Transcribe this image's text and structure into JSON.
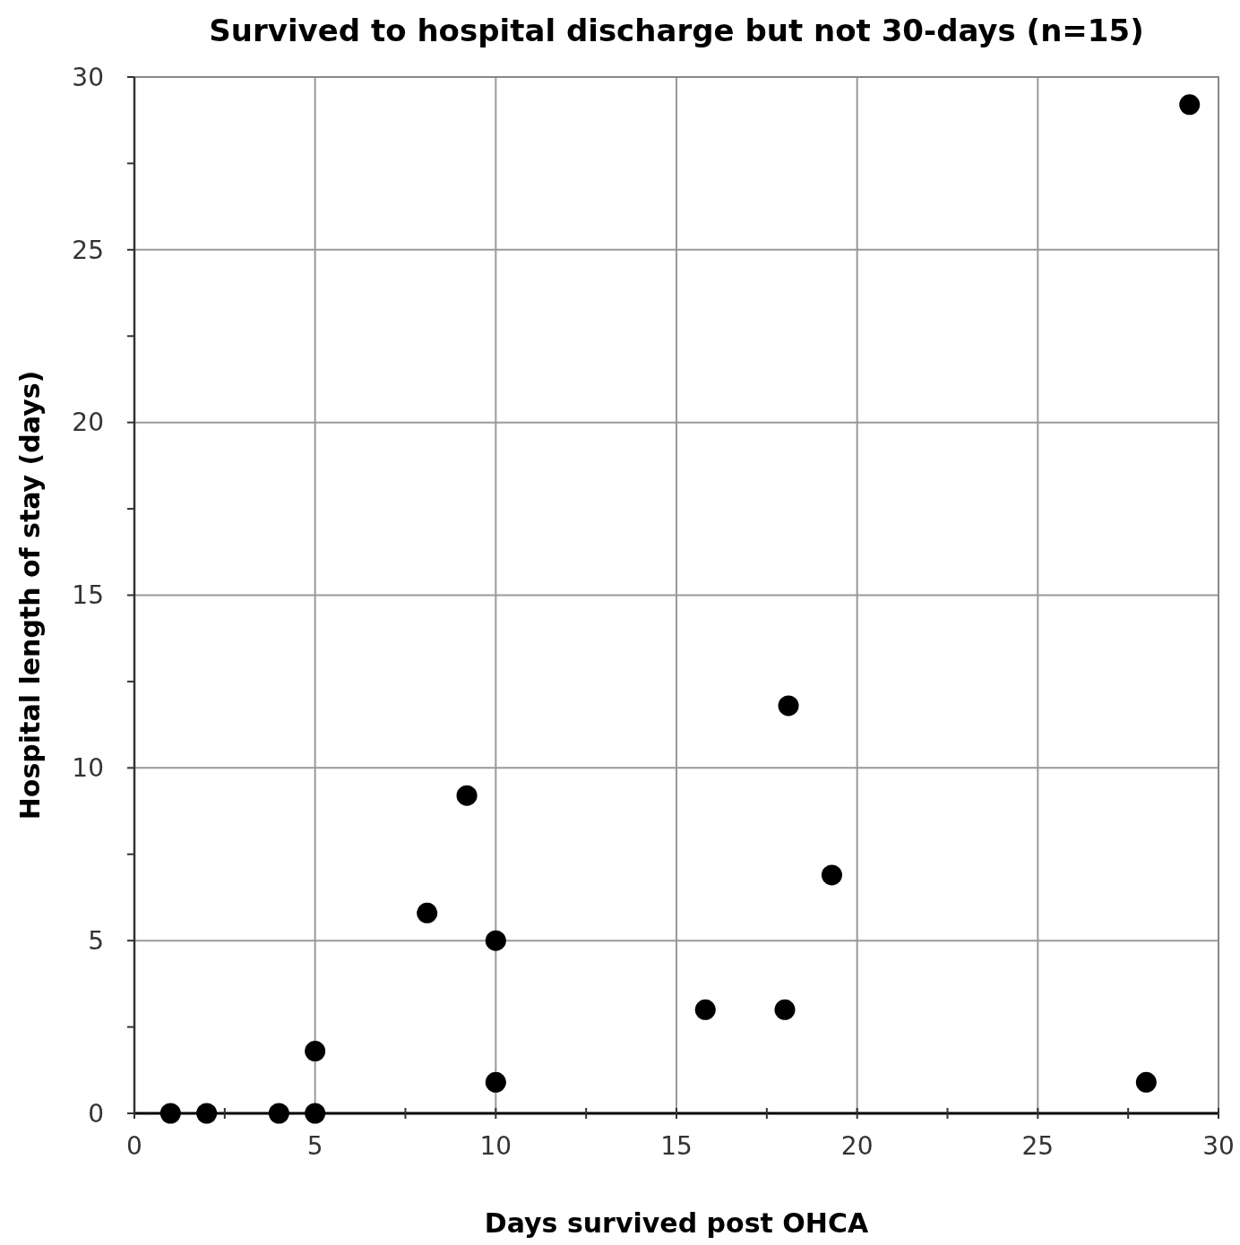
{
  "chart_data": {
    "type": "scatter",
    "title": "Survived to hospital discharge but not 30-days  (n=15)",
    "xlabel": "Days survived post OHCA",
    "ylabel": "Hospital length of stay (days)",
    "x": [
      1,
      2,
      4,
      5,
      5,
      8.1,
      9.2,
      10,
      10,
      15.8,
      18,
      18.1,
      19.3,
      28,
      29.2
    ],
    "series": [
      {
        "color": "#000000",
        "values": [
          0,
          0,
          0,
          0,
          1.8,
          5.8,
          9.2,
          5,
          0.9,
          3,
          3,
          11.8,
          6.9,
          0.9,
          29.2
        ]
      }
    ],
    "xlim": [
      0,
      30
    ],
    "ylim": [
      0,
      30
    ],
    "xticks": [
      0,
      {
        "value": 2.5,
        "label": null
      },
      5,
      {
        "value": 7.5,
        "label": null
      },
      10,
      {
        "value": 12.5,
        "label": null
      },
      15,
      {
        "value": 17.5,
        "label": null
      },
      20,
      {
        "value": 22.5,
        "label": null
      },
      25,
      {
        "value": 27.5,
        "label": null
      },
      30
    ],
    "yticks": [
      0,
      {
        "value": 2.5,
        "label": null
      },
      5,
      {
        "value": 7.5,
        "label": null
      },
      10,
      {
        "value": 12.5,
        "label": null
      },
      15,
      {
        "value": 17.5,
        "label": null
      },
      20,
      {
        "value": 22.5,
        "label": null
      },
      25,
      {
        "value": 27.5,
        "label": null
      },
      30
    ],
    "grid": true,
    "marker": "circle"
  }
}
